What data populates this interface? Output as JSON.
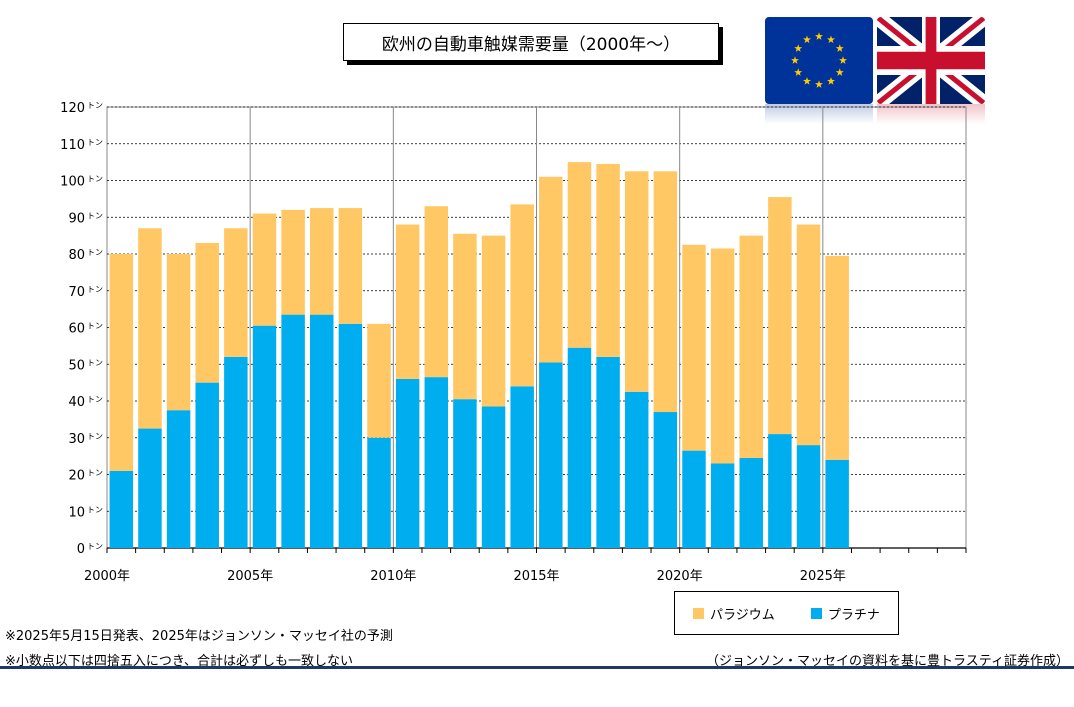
{
  "colors": {
    "palladium": "#FFC864",
    "platinum": "#00AEEF",
    "rule": "#1F3864"
  },
  "chart_data": {
    "type": "bar",
    "stacked": true,
    "title": "欧州の自動車触媒需要量（2000年～）",
    "categories": [
      "2000",
      "2001",
      "2002",
      "2003",
      "2004",
      "2005",
      "2006",
      "2007",
      "2008",
      "2009",
      "2010",
      "2011",
      "2012",
      "2013",
      "2014",
      "2015",
      "2016",
      "2017",
      "2018",
      "2019",
      "2020",
      "2021",
      "2022",
      "2023",
      "2024",
      "2025"
    ],
    "x_tick_labels": [
      "2000年",
      "2005年",
      "2010年",
      "2015年",
      "2020年",
      "2025年"
    ],
    "x_range": [
      2000,
      2030
    ],
    "ylim": [
      0,
      120
    ],
    "y_ticks": [
      0,
      10,
      20,
      30,
      40,
      50,
      60,
      70,
      80,
      90,
      100,
      110,
      120
    ],
    "y_unit": "トン",
    "grid": true,
    "legend_position": "bottom-right",
    "series": [
      {
        "name": "プラチナ",
        "values": [
          21,
          32.5,
          37.5,
          45,
          52,
          60.5,
          63.5,
          63.5,
          61,
          30,
          46,
          46.5,
          40.5,
          38.5,
          44,
          50.5,
          54.5,
          52,
          42.5,
          37,
          26.5,
          23,
          24.5,
          31,
          28,
          24
        ]
      },
      {
        "name": "パラジウム",
        "values": [
          59,
          54.5,
          42.5,
          38,
          35,
          30.5,
          28.5,
          29,
          31.5,
          31,
          42,
          46.5,
          45,
          46.5,
          49.5,
          50.5,
          50.5,
          52.5,
          60,
          65.5,
          56,
          58.5,
          60.5,
          64.5,
          60,
          55.5
        ]
      }
    ]
  },
  "legend": {
    "palladium": "パラジウム",
    "platinum": "プラチナ"
  },
  "notes": {
    "note1": "※2025年5月15日発表、2025年はジョンソン・マッセイ社の予測",
    "note2": "※小数点以下は四捨五入につき、合計は必ずしも一致しない",
    "source": "（ジョンソン・マッセイの資料を基に豊トラスティ証券作成）"
  }
}
